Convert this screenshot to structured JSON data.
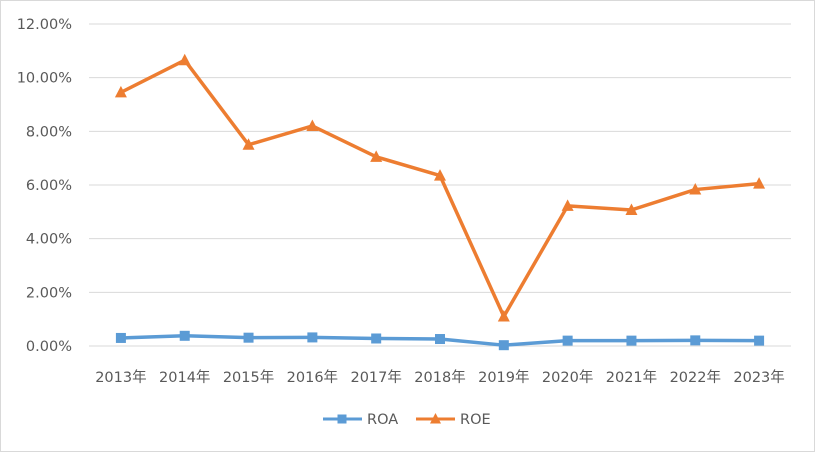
{
  "chart_data": {
    "type": "line",
    "title": "",
    "xlabel": "",
    "ylabel": "",
    "categories": [
      "2013年",
      "2014年",
      "2015年",
      "2016年",
      "2017年",
      "2018年",
      "2019年",
      "2020年",
      "2021年",
      "2022年",
      "2023年"
    ],
    "ylim": [
      0,
      12
    ],
    "y_ticks": [
      "0.00%",
      "2.00%",
      "4.00%",
      "6.00%",
      "8.00%",
      "10.00%",
      "12.00%"
    ],
    "grid": true,
    "legend_position": "bottom",
    "series": [
      {
        "name": "ROA",
        "color": "#5b9bd5",
        "marker": "square",
        "values": [
          0.3,
          0.38,
          0.31,
          0.32,
          0.28,
          0.26,
          0.03,
          0.2,
          0.2,
          0.21,
          0.2
        ]
      },
      {
        "name": "ROE",
        "color": "#ed7d31",
        "marker": "triangle",
        "values": [
          9.45,
          10.65,
          7.5,
          8.2,
          7.05,
          6.35,
          1.1,
          5.22,
          5.07,
          5.83,
          6.05
        ]
      }
    ]
  }
}
